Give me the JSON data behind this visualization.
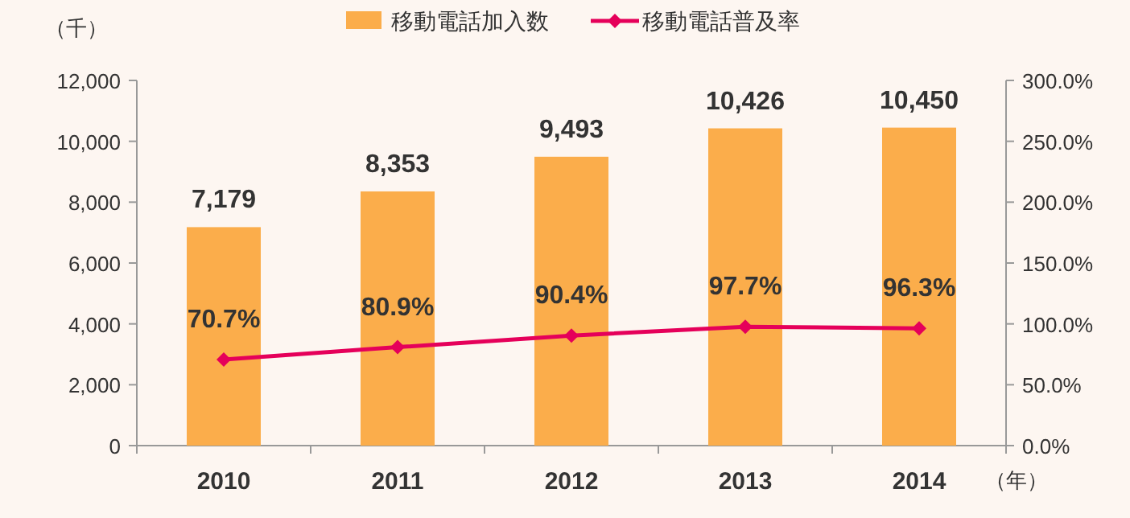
{
  "chart_data": {
    "type": "bar",
    "ylabel": "（千）",
    "xlabel": "（年）",
    "categories": [
      "2010",
      "2011",
      "2012",
      "2013",
      "2014"
    ],
    "series": [
      {
        "name": "移動電話加入数",
        "color": "#fbad4b",
        "values": [
          7179,
          8353,
          9493,
          10426,
          10450
        ],
        "value_labels": [
          "7,179",
          "8,353",
          "9,493",
          "10,426",
          "10,450"
        ]
      },
      {
        "name": "移動電話普及率",
        "type": "line",
        "axis": "y2",
        "color": "#e5005a",
        "marker": "diamond",
        "values": [
          70.7,
          80.9,
          90.4,
          97.7,
          96.3
        ],
        "value_labels": [
          "70.7%",
          "80.9%",
          "90.4%",
          "97.7%",
          "96.3%"
        ]
      }
    ],
    "ylim": [
      0,
      12000
    ],
    "yticks": [
      0,
      {
        "value": 2000,
        "label": "2,000"
      },
      {
        "value": 4000,
        "label": "4,000"
      },
      {
        "value": 6000,
        "label": "6,000"
      },
      {
        "value": 8000,
        "label": "8,000"
      },
      {
        "value": 10000,
        "label": "10,000"
      },
      {
        "value": 12000,
        "label": "12,000"
      }
    ],
    "y2lim": [
      0,
      300
    ],
    "y2ticks": [
      {
        "value": 0,
        "label": "0.0%"
      },
      {
        "value": 50,
        "label": "50.0%"
      },
      {
        "value": 100,
        "label": "100.0%"
      },
      {
        "value": 150,
        "label": "150.0%"
      },
      {
        "value": 200,
        "label": "200.0%"
      },
      {
        "value": 250,
        "label": "250.0%"
      },
      {
        "value": 300,
        "label": "300.0%"
      }
    ],
    "legend": "top",
    "grid": false
  }
}
